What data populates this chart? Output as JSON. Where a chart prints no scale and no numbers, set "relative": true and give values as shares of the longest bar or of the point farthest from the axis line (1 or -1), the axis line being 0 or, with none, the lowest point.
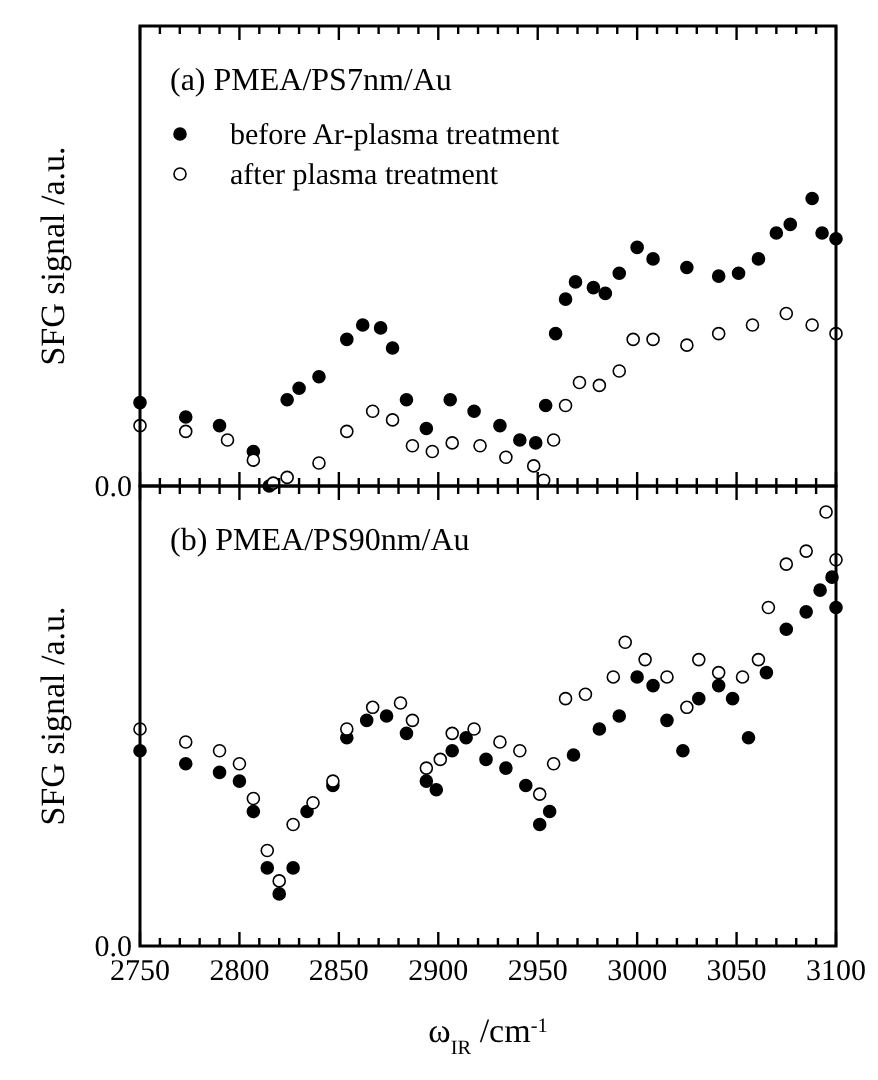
{
  "chart_data": [
    {
      "type": "scatter",
      "title": "(a) PMEA/PS7nm/Au",
      "ylabel": "SFG signal /a.u.",
      "relative": true,
      "marker": "circle",
      "legend": "top left",
      "tick_labels": false,
      "grid": false,
      "xlim": [
        2750,
        3100
      ],
      "xticks": [
        2750,
        {
          "value": 2760,
          "label": null
        },
        {
          "value": 2770,
          "label": null
        },
        {
          "value": 2780,
          "label": null
        },
        {
          "value": 2790,
          "label": null
        },
        2800,
        {
          "value": 2810,
          "label": null
        },
        {
          "value": 2820,
          "label": null
        },
        {
          "value": 2830,
          "label": null
        },
        {
          "value": 2840,
          "label": null
        },
        2850,
        {
          "value": 2860,
          "label": null
        },
        {
          "value": 2870,
          "label": null
        },
        {
          "value": 2880,
          "label": null
        },
        {
          "value": 2890,
          "label": null
        },
        2900,
        {
          "value": 2910,
          "label": null
        },
        {
          "value": 2920,
          "label": null
        },
        {
          "value": 2930,
          "label": null
        },
        {
          "value": 2940,
          "label": null
        },
        2950,
        {
          "value": 2960,
          "label": null
        },
        {
          "value": 2970,
          "label": null
        },
        {
          "value": 2980,
          "label": null
        },
        {
          "value": 2990,
          "label": null
        },
        3000,
        {
          "value": 3010,
          "label": null
        },
        {
          "value": 3020,
          "label": null
        },
        {
          "value": 3030,
          "label": null
        },
        {
          "value": 3040,
          "label": null
        },
        3050,
        {
          "value": 3060,
          "label": null
        },
        {
          "value": 3070,
          "label": null
        },
        {
          "value": 3080,
          "label": null
        },
        {
          "value": 3090,
          "label": null
        },
        3100
      ],
      "annotations": [
        "0.0"
      ],
      "series": [
        {
          "name": "before Ar-plasma treatment",
          "color": "#000000",
          "x": [
            2750,
            2773,
            2790,
            2807,
            2815,
            2824,
            2830,
            2840,
            2854,
            2862,
            2871,
            2877,
            2884,
            2894,
            2906,
            2918,
            2931,
            2941,
            2949,
            2954,
            2959,
            2964,
            2969,
            2978,
            2984,
            2991,
            3000,
            3008,
            3025,
            3041,
            3051,
            3061,
            3070,
            3077,
            3088,
            3093,
            3100
          ],
          "values": [
            0.29,
            0.24,
            0.21,
            0.12,
            0.0,
            0.3,
            0.34,
            0.38,
            0.51,
            0.56,
            0.55,
            0.48,
            0.3,
            0.2,
            0.3,
            0.26,
            0.21,
            0.16,
            0.15,
            0.28,
            0.53,
            0.65,
            0.71,
            0.69,
            0.67,
            0.74,
            0.83,
            0.79,
            0.76,
            0.73,
            0.74,
            0.79,
            0.88,
            0.91,
            1.0,
            0.88,
            0.86
          ]
        },
        {
          "name": "after plasma treatment",
          "color": "#ffffff",
          "x": [
            2750,
            2773,
            2794,
            2807,
            2817,
            2824,
            2840,
            2854,
            2867,
            2877,
            2887,
            2897,
            2907,
            2921,
            2934,
            2948,
            2953,
            2958,
            2964,
            2971,
            2981,
            2991,
            2998,
            3008,
            3025,
            3041,
            3058,
            3075,
            3088,
            3100
          ],
          "values": [
            0.21,
            0.19,
            0.16,
            0.09,
            0.01,
            0.03,
            0.08,
            0.19,
            0.26,
            0.23,
            0.14,
            0.12,
            0.15,
            0.14,
            0.1,
            0.07,
            0.02,
            0.16,
            0.28,
            0.36,
            0.35,
            0.4,
            0.51,
            0.51,
            0.49,
            0.53,
            0.56,
            0.6,
            0.56,
            0.53
          ]
        }
      ]
    },
    {
      "type": "scatter",
      "title": "(b) PMEA/PS90nm/Au",
      "ylabel": "SFG signal /a.u.",
      "xlabel": "ω$_{IR}$ /cm$^{-1}$",
      "relative": true,
      "marker": "circle",
      "grid": false,
      "xlim": [
        2750,
        3100
      ],
      "xticks": [
        2750,
        {
          "value": 2760,
          "label": null
        },
        {
          "value": 2770,
          "label": null
        },
        {
          "value": 2780,
          "label": null
        },
        {
          "value": 2790,
          "label": null
        },
        2800,
        {
          "value": 2810,
          "label": null
        },
        {
          "value": 2820,
          "label": null
        },
        {
          "value": 2830,
          "label": null
        },
        {
          "value": 2840,
          "label": null
        },
        2850,
        {
          "value": 2860,
          "label": null
        },
        {
          "value": 2870,
          "label": null
        },
        {
          "value": 2880,
          "label": null
        },
        {
          "value": 2890,
          "label": null
        },
        2900,
        {
          "value": 2910,
          "label": null
        },
        {
          "value": 2920,
          "label": null
        },
        {
          "value": 2930,
          "label": null
        },
        {
          "value": 2940,
          "label": null
        },
        2950,
        {
          "value": 2960,
          "label": null
        },
        {
          "value": 2970,
          "label": null
        },
        {
          "value": 2980,
          "label": null
        },
        {
          "value": 2990,
          "label": null
        },
        3000,
        {
          "value": 3010,
          "label": null
        },
        {
          "value": 3020,
          "label": null
        },
        {
          "value": 3030,
          "label": null
        },
        {
          "value": 3040,
          "label": null
        },
        3050,
        {
          "value": 3060,
          "label": null
        },
        {
          "value": 3070,
          "label": null
        },
        {
          "value": 3080,
          "label": null
        },
        {
          "value": 3090,
          "label": null
        },
        3100
      ],
      "annotations": [
        "0.0"
      ],
      "series": [
        {
          "color": "#000000",
          "x": [
            2750,
            2773,
            2790,
            2800,
            2807,
            2814,
            2820,
            2827,
            2834,
            2847,
            2854,
            2864,
            2874,
            2884,
            2894,
            2899,
            2907,
            2914,
            2924,
            2934,
            2944,
            2951,
            2956,
            2968,
            2981,
            2991,
            3000,
            3008,
            3015,
            3023,
            3031,
            3041,
            3048,
            3056,
            3065,
            3075,
            3085,
            3092,
            3098,
            3100
          ],
          "values": [
            0.45,
            0.42,
            0.4,
            0.38,
            0.31,
            0.18,
            0.12,
            0.18,
            0.31,
            0.37,
            0.48,
            0.52,
            0.53,
            0.49,
            0.38,
            0.36,
            0.45,
            0.48,
            0.43,
            0.41,
            0.37,
            0.28,
            0.31,
            0.44,
            0.5,
            0.53,
            0.62,
            0.6,
            0.52,
            0.45,
            0.57,
            0.6,
            0.57,
            0.48,
            0.63,
            0.73,
            0.77,
            0.82,
            0.85,
            0.78
          ]
        },
        {
          "color": "#ffffff",
          "x": [
            2750,
            2773,
            2790,
            2800,
            2807,
            2814,
            2820,
            2827,
            2837,
            2847,
            2854,
            2867,
            2881,
            2887,
            2894,
            2901,
            2907,
            2918,
            2931,
            2941,
            2951,
            2958,
            2964,
            2974,
            2988,
            2994,
            3004,
            3015,
            3025,
            3031,
            3041,
            3053,
            3061,
            3066,
            3075,
            3085,
            3095,
            3100
          ],
          "values": [
            0.5,
            0.47,
            0.45,
            0.42,
            0.34,
            0.22,
            0.15,
            0.28,
            0.33,
            0.38,
            0.5,
            0.55,
            0.56,
            0.52,
            0.41,
            0.43,
            0.49,
            0.5,
            0.47,
            0.45,
            0.35,
            0.42,
            0.57,
            0.58,
            0.62,
            0.7,
            0.66,
            0.62,
            0.55,
            0.66,
            0.63,
            0.62,
            0.66,
            0.78,
            0.88,
            0.91,
            1.0,
            0.89
          ]
        }
      ]
    }
  ]
}
